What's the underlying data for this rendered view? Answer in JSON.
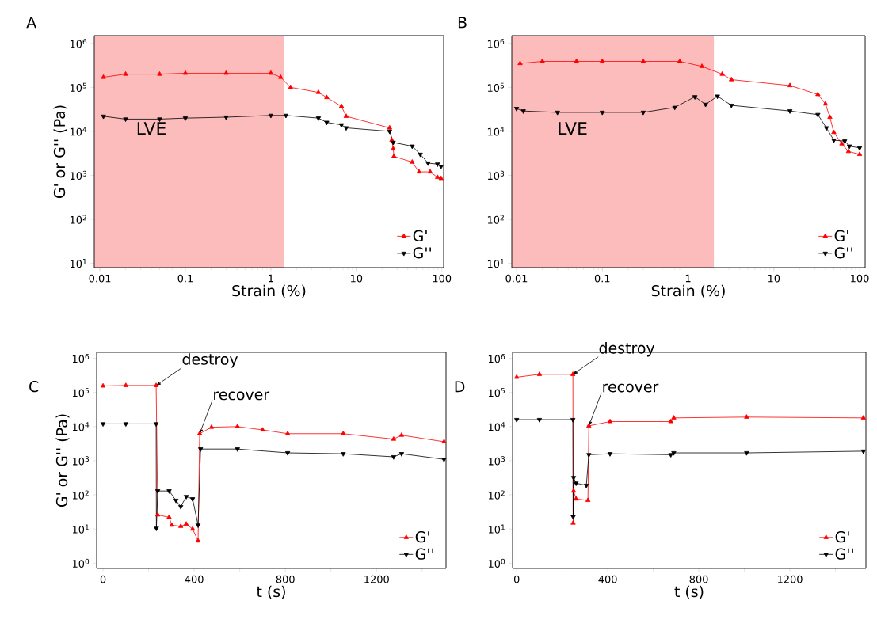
{
  "chart_data": [
    {
      "type": "line",
      "title": "A",
      "xlabel": "Strain  (%)",
      "ylabel": "G' or G'' (Pa)",
      "log": "xy",
      "xlim": [
        0.0086,
        105
      ],
      "ylim": [
        8,
        1500000
      ],
      "xticks": [
        0.01,
        0.1,
        1,
        10,
        100
      ],
      "yticks": [
        {
          "value": 10,
          "label": "10$^{1}$"
        },
        {
          "value": 100,
          "label": "10$^{2}$"
        },
        {
          "value": 1000,
          "label": "10$^{3}$"
        },
        {
          "value": 10000,
          "label": "10$^{4}$"
        },
        {
          "value": 100000,
          "label": "10$^{5}$"
        },
        {
          "value": 1000000,
          "label": "10$^{6}$"
        }
      ],
      "bands": [
        {
          "axis": "x",
          "from": 0.0086,
          "to": 1.44,
          "label": "LVE",
          "color": "#fdbcbc"
        }
      ],
      "legend": "bottom right",
      "series": [
        {
          "name": "G'",
          "color": "#ff0000",
          "marker": "triangle",
          "x": [
            0.011,
            0.02,
            0.05,
            0.1,
            0.3,
            1,
            1.3,
            1.7,
            3.6,
            4.5,
            6.7,
            7.6,
            24.5,
            26,
            27,
            27.5,
            45,
            54,
            73,
            89,
            98
          ],
          "values": [
            170000,
            200000,
            200000,
            210000,
            210000,
            210000,
            170000,
            100000,
            77000,
            59000,
            37000,
            22000,
            12000,
            6300,
            4000,
            2700,
            2000,
            1200,
            1200,
            900,
            850
          ]
        },
        {
          "name": "G''",
          "color": "#000000",
          "marker": "triangle down",
          "x": [
            0.011,
            0.02,
            0.05,
            0.1,
            0.3,
            1,
            1.5,
            3.6,
            4.5,
            6.7,
            7.6,
            24.5,
            27,
            45,
            56,
            69,
            89,
            98
          ],
          "values": [
            22000,
            19000,
            19000,
            20000,
            21000,
            23000,
            23000,
            20000,
            16000,
            14000,
            12000,
            10000,
            5600,
            4600,
            3000,
            1900,
            1800,
            1600
          ]
        }
      ]
    },
    {
      "type": "line",
      "title": "B",
      "xlabel": "Strain  (%)",
      "log": "xy",
      "xlim": [
        0.0088,
        116
      ],
      "ylim": [
        8,
        1500000
      ],
      "xticks": [
        0.01,
        0.1,
        1,
        10,
        100
      ],
      "yticks": [
        {
          "value": 10,
          "label": "10$^{1}$"
        },
        {
          "value": 100,
          "label": "10$^{2}$"
        },
        {
          "value": 1000,
          "label": "10$^{3}$"
        },
        {
          "value": 10000,
          "label": "10$^{4}$"
        },
        {
          "value": 100000,
          "label": "10$^{5}$"
        },
        {
          "value": 1000000,
          "label": "10$^{6}$"
        }
      ],
      "bands": [
        {
          "axis": "x",
          "from": 0.0088,
          "to": 2.0,
          "label": "LVE",
          "color": "#fdbcbc"
        }
      ],
      "legend": "bottom right",
      "series": [
        {
          "name": "G'",
          "color": "#ff0000",
          "marker": "triangle",
          "x": [
            0.011,
            0.02,
            0.05,
            0.1,
            0.3,
            0.8,
            1.45,
            2.5,
            3.2,
            15.4,
            32.6,
            40,
            45,
            50,
            62,
            74,
            100
          ],
          "values": [
            350000,
            390000,
            390000,
            390000,
            390000,
            390000,
            300000,
            200000,
            150000,
            110000,
            69000,
            42000,
            21000,
            9500,
            5200,
            3500,
            3000
          ]
        },
        {
          "name": "G''",
          "color": "#000000",
          "marker": "triangle down",
          "x": [
            0.01,
            0.012,
            0.03,
            0.1,
            0.3,
            0.7,
            1.2,
            1.6,
            2.2,
            3.2,
            15.4,
            32.6,
            41,
            50,
            67,
            76,
            100
          ],
          "values": [
            33000,
            29000,
            27000,
            27000,
            27000,
            35000,
            61000,
            41000,
            63000,
            39000,
            29000,
            24000,
            12000,
            6300,
            6000,
            4600,
            4200
          ]
        }
      ]
    },
    {
      "type": "line",
      "title": "C",
      "xlabel": "t (s)",
      "ylabel": "G' or G'' (Pa)",
      "log": "y",
      "xlim": [
        -28,
        1505
      ],
      "ylim": [
        0.7,
        1500000
      ],
      "xticks": [
        0,
        {
          "value": 200,
          "label": null
        },
        400,
        {
          "value": 600,
          "label": null
        },
        800,
        {
          "value": 1000,
          "label": null
        },
        1200,
        {
          "value": 1400,
          "label": null
        }
      ],
      "yticks": [
        {
          "value": 1,
          "label": "10$^{0}$"
        },
        {
          "value": 10,
          "label": "10$^{1}$"
        },
        {
          "value": 100,
          "label": "10$^{2}$"
        },
        {
          "value": 1000,
          "label": "10$^{3}$"
        },
        {
          "value": 10000,
          "label": "10$^{4}$"
        },
        {
          "value": 100000,
          "label": "10$^{5}$"
        },
        {
          "value": 1000000,
          "label": "10$^{6}$"
        }
      ],
      "annotations": [
        {
          "text": "destroy",
          "x": 233,
          "y": 160000
        },
        {
          "text": "recover",
          "x": 424,
          "y": 6200
        }
      ],
      "legend": "bottom right",
      "series": [
        {
          "name": "G'",
          "color": "#ff0000",
          "marker": "triangle",
          "x": [
            0,
            100,
            233,
            234,
            240,
            290,
            302,
            341,
            365,
            393,
            417,
            424,
            476,
            590,
            700,
            810,
            1054,
            1275,
            1310,
            1496
          ],
          "values": [
            155000,
            160000,
            160000,
            null,
            26,
            22,
            13,
            12,
            14,
            10,
            4.5,
            6200,
            9600,
            10000,
            8000,
            6200,
            6200,
            4300,
            5600,
            3600
          ]
        },
        {
          "name": "G''",
          "color": "#000000",
          "marker": "triangle down",
          "x": [
            0,
            100,
            233,
            234,
            240,
            290,
            320,
            341,
            365,
            393,
            417,
            428,
            590,
            810,
            1054,
            1275,
            1310,
            1496
          ],
          "values": [
            12000,
            12000,
            12000,
            10.5,
            130,
            130,
            69,
            45,
            89,
            76,
            13,
            2200,
            2200,
            1700,
            1600,
            1300,
            1600,
            1100
          ]
        }
      ]
    },
    {
      "type": "line",
      "title": "D",
      "xlabel": "t (s)",
      "log": "y",
      "xlim": [
        -18,
        1534
      ],
      "ylim": [
        0.7,
        1500000
      ],
      "xticks": [
        0,
        {
          "value": 200,
          "label": null
        },
        400,
        {
          "value": 600,
          "label": null
        },
        800,
        {
          "value": 1000,
          "label": null
        },
        1200,
        {
          "value": 1400,
          "label": null
        }
      ],
      "yticks": [
        {
          "value": 1,
          "label": "10$^{0}$"
        },
        {
          "value": 10,
          "label": "10$^{1}$"
        },
        {
          "value": 100,
          "label": "10$^{2}$"
        },
        {
          "value": 1000,
          "label": "10$^{3}$"
        },
        {
          "value": 10000,
          "label": "10$^{4}$"
        },
        {
          "value": 100000,
          "label": "10$^{5}$"
        },
        {
          "value": 1000000,
          "label": "10$^{6}$"
        }
      ],
      "annotations": [
        {
          "text": "destroy",
          "x": 247,
          "y": 340000
        },
        {
          "text": "recover",
          "x": 317,
          "y": 10500
        }
      ],
      "legend": "bottom right",
      "series": [
        {
          "name": "G'",
          "color": "#ff0000",
          "marker": "triangle",
          "x": [
            0,
            100,
            247,
            248,
            250,
            261,
            313,
            317,
            410,
            677,
            690,
            1010,
            1523
          ],
          "values": [
            280000,
            340000,
            340000,
            15,
            130,
            76,
            69,
            10500,
            14000,
            14000,
            18000,
            19000,
            18000
          ]
        },
        {
          "name": "G''",
          "color": "#000000",
          "marker": "triangle down",
          "x": [
            0,
            100,
            247,
            248,
            250,
            261,
            306,
            317,
            410,
            677,
            690,
            1010,
            1523
          ],
          "values": [
            16000,
            16000,
            16000,
            23,
            320,
            220,
            190,
            1500,
            1600,
            1500,
            1700,
            1700,
            1900
          ]
        }
      ]
    }
  ]
}
